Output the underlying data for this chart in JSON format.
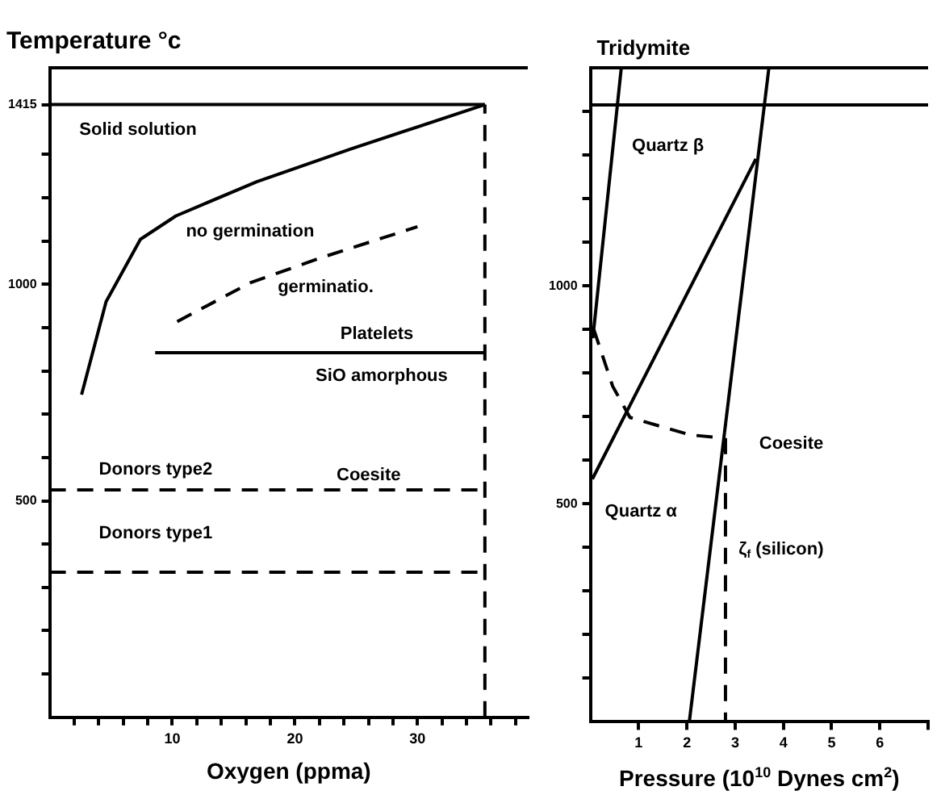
{
  "chart_data": [
    {
      "type": "line",
      "ylabel": "Temperature °c",
      "xlabel": "Oxygen (ppma)",
      "xlim": [
        0,
        39
      ],
      "ylim": [
        0,
        1500
      ],
      "xticks": [
        {
          "value": 2,
          "label": null
        },
        {
          "value": 4,
          "label": null
        },
        {
          "value": 6,
          "label": null
        },
        {
          "value": 8,
          "label": null
        },
        10,
        {
          "value": 12,
          "label": null
        },
        {
          "value": 14,
          "label": null
        },
        {
          "value": 16,
          "label": null
        },
        {
          "value": 18,
          "label": null
        },
        20,
        {
          "value": 22,
          "label": null
        },
        {
          "value": 24,
          "label": null
        },
        {
          "value": 26,
          "label": null
        },
        {
          "value": 28,
          "label": null
        },
        30,
        {
          "value": 32,
          "label": null
        },
        {
          "value": 34,
          "label": null
        },
        {
          "value": 36,
          "label": null
        },
        {
          "value": 38,
          "label": null
        }
      ],
      "yticks": [
        {
          "value": 100,
          "label": null
        },
        {
          "value": 200,
          "label": null
        },
        {
          "value": 300,
          "label": null
        },
        {
          "value": 400,
          "label": null
        },
        500,
        {
          "value": 600,
          "label": null
        },
        {
          "value": 700,
          "label": null
        },
        {
          "value": 800,
          "label": null
        },
        {
          "value": 900,
          "label": null
        },
        1000,
        {
          "value": 1100,
          "label": null
        },
        {
          "value": 1200,
          "label": null
        },
        {
          "value": 1300,
          "label": null
        },
        1415
      ],
      "series": [
        {
          "color": "#000000",
          "line_style": "solid",
          "x": [
            0,
            35.5
          ],
          "values": [
            1415,
            1415
          ]
        },
        {
          "color": "#000000",
          "line_style": "solid",
          "x": [
            2.6,
            4.6,
            7.4,
            10.3,
            16.9,
            24.6,
            35.5
          ],
          "values": [
            745,
            960,
            1104,
            1158,
            1237,
            1313,
            1415
          ]
        },
        {
          "color": "#000000",
          "line_style": "dashed",
          "x": [
            10.4,
            16.4,
            22.1,
            30
          ],
          "values": [
            914,
            1004,
            1061,
            1133
          ]
        },
        {
          "color": "#000000",
          "line_style": "solid",
          "x": [
            8.6,
            35.5
          ],
          "values": [
            842,
            842
          ]
        },
        {
          "color": "#000000",
          "line_style": "dashed",
          "x": [
            0,
            35.5
          ],
          "values": [
            525,
            525
          ]
        },
        {
          "color": "#000000",
          "line_style": "dashed",
          "x": [
            0,
            35.5
          ],
          "values": [
            335,
            335
          ]
        },
        {
          "color": "#000000",
          "line_style": "dashed",
          "x": [
            35.5,
            35.5
          ],
          "values": [
            0,
            1415
          ]
        }
      ],
      "annotations": [
        "Solid solution",
        "no germination",
        "germinatio.",
        "Platelets",
        "SiO amorphous",
        "Donors type2",
        "Coesite",
        "Donors type1"
      ]
    },
    {
      "type": "line",
      "xlabel": "Pressure (10$^{10}$ Dynes cm$^{2}$)",
      "xlim": [
        0,
        7
      ],
      "ylim": [
        0,
        1500
      ],
      "xticks": [
        1,
        2,
        3,
        4,
        5,
        6,
        {
          "value": 7,
          "label": null
        }
      ],
      "yticks": [
        {
          "value": 100,
          "label": null
        },
        {
          "value": 200,
          "label": null
        },
        {
          "value": 300,
          "label": null
        },
        {
          "value": 400,
          "label": null
        },
        500,
        {
          "value": 600,
          "label": null
        },
        {
          "value": 700,
          "label": null
        },
        {
          "value": 800,
          "label": null
        },
        {
          "value": 900,
          "label": null
        },
        1000,
        {
          "value": 1100,
          "label": null
        },
        {
          "value": 1200,
          "label": null
        },
        {
          "value": 1300,
          "label": null
        },
        {
          "value": 1400,
          "label": null
        }
      ],
      "series": [
        {
          "color": "#000000",
          "line_style": "solid",
          "x": [
            0,
            7
          ],
          "values": [
            1415,
            1415
          ]
        },
        {
          "color": "#000000",
          "line_style": "solid",
          "x": [
            0.64,
            0.05
          ],
          "values": [
            1500,
            880
          ]
        },
        {
          "color": "#000000",
          "line_style": "solid",
          "x": [
            3.7,
            2.05
          ],
          "values": [
            1500,
            0
          ]
        },
        {
          "color": "#000000",
          "line_style": "solid",
          "x": [
            3.43,
            0.04
          ],
          "values": [
            1291,
            557
          ]
        },
        {
          "color": "#000000",
          "line_style": "dashed",
          "x": [
            0.07,
            0.46,
            0.82,
            2.07,
            2.75
          ],
          "values": [
            900,
            770,
            698,
            658,
            651
          ]
        },
        {
          "color": "#000000",
          "line_style": "dashed",
          "x": [
            2.8,
            2.8
          ],
          "values": [
            651,
            0
          ]
        }
      ],
      "annotations": [
        "Tridymite",
        "Quartz β",
        "Coesite",
        "Quartz α",
        "ζ$_{f}$ (silicon)"
      ]
    }
  ]
}
